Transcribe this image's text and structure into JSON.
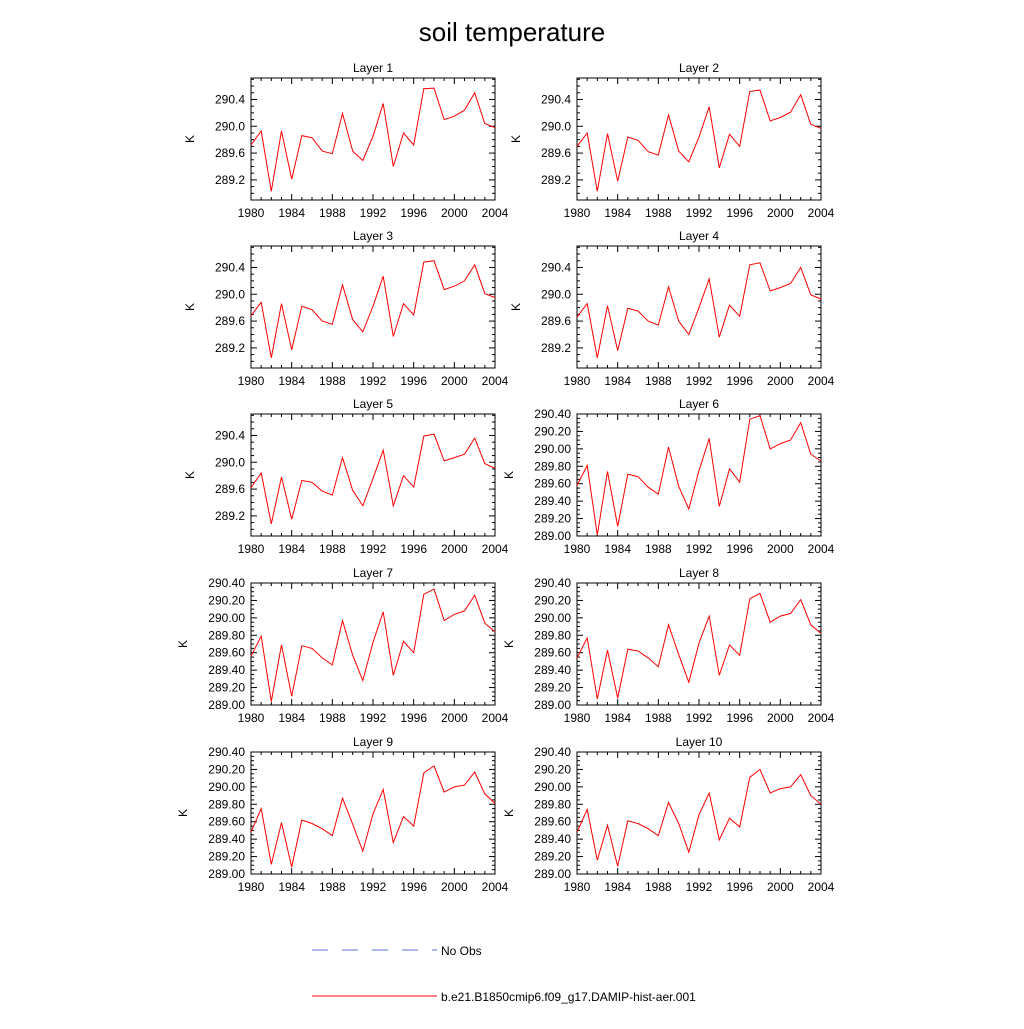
{
  "title": "soil temperature",
  "legend": {
    "items": [
      {
        "label": "No Obs",
        "color": "#5a6fd6",
        "style": "dashed"
      },
      {
        "label": "b.e21.B1850cmip6.f09_g17.DAMIP-hist-aer.001",
        "color": "#ff0000",
        "style": "solid"
      }
    ]
  },
  "chart_data": [
    {
      "type": "line",
      "title": "Layer 1",
      "ylabel": "K",
      "xlim": [
        1980,
        2004
      ],
      "ylim": [
        288.9,
        290.72
      ],
      "x_ticks": [
        "1980",
        "1984",
        "1988",
        "1992",
        "1996",
        "2000",
        "2004"
      ],
      "y_ticks": [
        289.2,
        289.6,
        290.0,
        290.4
      ],
      "y_tick_labels": [
        "289.2",
        "289.6",
        "290.0",
        "290.4"
      ],
      "series": [
        {
          "color": "#ff0000",
          "x": [
            1980,
            1981,
            1982,
            1983,
            1984,
            1985,
            1986,
            1987,
            1988,
            1989,
            1990,
            1991,
            1992,
            1993,
            1994,
            1995,
            1996,
            1997,
            1998,
            1999,
            2000,
            2001,
            2002,
            2003,
            2004
          ],
          "y": [
            289.72,
            289.93,
            289.03,
            289.93,
            289.21,
            289.86,
            289.83,
            289.63,
            289.59,
            290.19,
            289.63,
            289.49,
            289.85,
            290.34,
            289.4,
            289.9,
            289.72,
            290.56,
            290.57,
            290.1,
            290.15,
            290.24,
            290.5,
            290.04,
            289.98
          ]
        }
      ]
    },
    {
      "type": "line",
      "title": "Layer 2",
      "ylabel": "K",
      "xlim": [
        1980,
        2004
      ],
      "ylim": [
        288.9,
        290.72
      ],
      "x_ticks": [
        "1980",
        "1984",
        "1988",
        "1992",
        "1996",
        "2000",
        "2004"
      ],
      "y_ticks": [
        289.2,
        289.6,
        290.0,
        290.4
      ],
      "y_tick_labels": [
        "289.2",
        "289.6",
        "290.0",
        "290.4"
      ],
      "series": [
        {
          "color": "#ff0000",
          "x": [
            1980,
            1981,
            1982,
            1983,
            1984,
            1985,
            1986,
            1987,
            1988,
            1989,
            1990,
            1991,
            1992,
            1993,
            1994,
            1995,
            1996,
            1997,
            1998,
            1999,
            2000,
            2001,
            2002,
            2003,
            2004
          ],
          "y": [
            289.7,
            289.9,
            289.03,
            289.89,
            289.18,
            289.84,
            289.79,
            289.62,
            289.57,
            290.17,
            289.63,
            289.47,
            289.84,
            290.29,
            289.38,
            289.88,
            289.7,
            290.52,
            290.54,
            290.08,
            290.13,
            290.21,
            290.47,
            290.03,
            289.97
          ]
        }
      ]
    },
    {
      "type": "line",
      "title": "Layer 3",
      "ylabel": "K",
      "xlim": [
        1980,
        2004
      ],
      "ylim": [
        288.9,
        290.72
      ],
      "x_ticks": [
        "1980",
        "1984",
        "1988",
        "1992",
        "1996",
        "2000",
        "2004"
      ],
      "y_ticks": [
        289.2,
        289.6,
        290.0,
        290.4
      ],
      "y_tick_labels": [
        "289.2",
        "289.6",
        "290.0",
        "290.4"
      ],
      "series": [
        {
          "color": "#ff0000",
          "x": [
            1980,
            1981,
            1982,
            1983,
            1984,
            1985,
            1986,
            1987,
            1988,
            1989,
            1990,
            1991,
            1992,
            1993,
            1994,
            1995,
            1996,
            1997,
            1998,
            1999,
            2000,
            2001,
            2002,
            2003,
            2004
          ],
          "y": [
            289.68,
            289.88,
            289.05,
            289.86,
            289.17,
            289.82,
            289.77,
            289.6,
            289.55,
            290.14,
            289.62,
            289.44,
            289.82,
            290.27,
            289.37,
            289.86,
            289.69,
            290.48,
            290.5,
            290.07,
            290.12,
            290.2,
            290.44,
            290.01,
            289.95
          ]
        }
      ]
    },
    {
      "type": "line",
      "title": "Layer 4",
      "ylabel": "K",
      "xlim": [
        1980,
        2004
      ],
      "ylim": [
        288.9,
        290.72
      ],
      "x_ticks": [
        "1980",
        "1984",
        "1988",
        "1992",
        "1996",
        "2000",
        "2004"
      ],
      "y_ticks": [
        289.2,
        289.6,
        290.0,
        290.4
      ],
      "y_tick_labels": [
        "289.2",
        "289.6",
        "290.0",
        "290.4"
      ],
      "series": [
        {
          "color": "#ff0000",
          "x": [
            1980,
            1981,
            1982,
            1983,
            1984,
            1985,
            1986,
            1987,
            1988,
            1989,
            1990,
            1991,
            1992,
            1993,
            1994,
            1995,
            1996,
            1997,
            1998,
            1999,
            2000,
            2001,
            2002,
            2003,
            2004
          ],
          "y": [
            289.66,
            289.86,
            289.05,
            289.83,
            289.16,
            289.79,
            289.75,
            289.6,
            289.54,
            290.11,
            289.6,
            289.4,
            289.8,
            290.23,
            289.36,
            289.84,
            289.67,
            290.44,
            290.47,
            290.05,
            290.1,
            290.16,
            290.4,
            289.99,
            289.93
          ]
        }
      ]
    },
    {
      "type": "line",
      "title": "Layer 5",
      "ylabel": "K",
      "xlim": [
        1980,
        2004
      ],
      "ylim": [
        288.9,
        290.72
      ],
      "x_ticks": [
        "1980",
        "1984",
        "1988",
        "1992",
        "1996",
        "2000",
        "2004"
      ],
      "y_ticks": [
        289.2,
        289.6,
        290.0,
        290.4
      ],
      "y_tick_labels": [
        "289.2",
        "289.6",
        "290.0",
        "290.4"
      ],
      "series": [
        {
          "color": "#ff0000",
          "x": [
            1980,
            1981,
            1982,
            1983,
            1984,
            1985,
            1986,
            1987,
            1988,
            1989,
            1990,
            1991,
            1992,
            1993,
            1994,
            1995,
            1996,
            1997,
            1998,
            1999,
            2000,
            2001,
            2002,
            2003,
            2004
          ],
          "y": [
            289.62,
            289.84,
            289.08,
            289.78,
            289.15,
            289.73,
            289.7,
            289.57,
            289.51,
            290.07,
            289.58,
            289.35,
            289.76,
            290.18,
            289.35,
            289.8,
            289.63,
            290.39,
            290.42,
            290.02,
            290.07,
            290.12,
            290.36,
            289.98,
            289.91
          ]
        }
      ]
    },
    {
      "type": "line",
      "title": "Layer 6",
      "ylabel": "K",
      "xlim": [
        1980,
        2004
      ],
      "ylim": [
        289.0,
        290.4
      ],
      "x_ticks": [
        "1980",
        "1984",
        "1988",
        "1992",
        "1996",
        "2000",
        "2004"
      ],
      "y_ticks": [
        289.0,
        289.2,
        289.4,
        289.6,
        289.8,
        290.0,
        290.2,
        290.4
      ],
      "y_tick_labels": [
        "289.00",
        "289.20",
        "289.40",
        "289.60",
        "289.80",
        "290.00",
        "290.20",
        "290.40"
      ],
      "series": [
        {
          "color": "#ff0000",
          "x": [
            1980,
            1981,
            1982,
            1983,
            1984,
            1985,
            1986,
            1987,
            1988,
            1989,
            1990,
            1991,
            1992,
            1993,
            1994,
            1995,
            1996,
            1997,
            1998,
            1999,
            2000,
            2001,
            2002,
            2003,
            2004
          ],
          "y": [
            289.58,
            289.81,
            289.01,
            289.74,
            289.11,
            289.71,
            289.68,
            289.56,
            289.48,
            290.02,
            289.57,
            289.31,
            289.75,
            290.12,
            289.34,
            289.77,
            289.62,
            290.34,
            290.38,
            290.0,
            290.06,
            290.1,
            290.3,
            289.94,
            289.86
          ]
        }
      ]
    },
    {
      "type": "line",
      "title": "Layer 7",
      "ylabel": "K",
      "xlim": [
        1980,
        2004
      ],
      "ylim": [
        289.0,
        290.4
      ],
      "x_ticks": [
        "1980",
        "1984",
        "1988",
        "1992",
        "1996",
        "2000",
        "2004"
      ],
      "y_ticks": [
        289.0,
        289.2,
        289.4,
        289.6,
        289.8,
        290.0,
        290.2,
        290.4
      ],
      "y_tick_labels": [
        "289.00",
        "289.20",
        "289.40",
        "289.60",
        "289.80",
        "290.00",
        "290.20",
        "290.40"
      ],
      "series": [
        {
          "color": "#ff0000",
          "x": [
            1980,
            1981,
            1982,
            1983,
            1984,
            1985,
            1986,
            1987,
            1988,
            1989,
            1990,
            1991,
            1992,
            1993,
            1994,
            1995,
            1996,
            1997,
            1998,
            1999,
            2000,
            2001,
            2002,
            2003,
            2004
          ],
          "y": [
            289.56,
            289.79,
            289.04,
            289.69,
            289.1,
            289.68,
            289.65,
            289.54,
            289.46,
            289.97,
            289.57,
            289.28,
            289.72,
            290.07,
            289.34,
            289.73,
            289.6,
            290.27,
            290.33,
            289.97,
            290.04,
            290.08,
            290.26,
            289.94,
            289.84
          ]
        }
      ]
    },
    {
      "type": "line",
      "title": "Layer 8",
      "ylabel": "K",
      "xlim": [
        1980,
        2004
      ],
      "ylim": [
        289.0,
        290.4
      ],
      "x_ticks": [
        "1980",
        "1984",
        "1988",
        "1992",
        "1996",
        "2000",
        "2004"
      ],
      "y_ticks": [
        289.0,
        289.2,
        289.4,
        289.6,
        289.8,
        290.0,
        290.2,
        290.4
      ],
      "y_tick_labels": [
        "289.00",
        "289.20",
        "289.40",
        "289.60",
        "289.80",
        "290.00",
        "290.20",
        "290.40"
      ],
      "series": [
        {
          "color": "#ff0000",
          "x": [
            1980,
            1981,
            1982,
            1983,
            1984,
            1985,
            1986,
            1987,
            1988,
            1989,
            1990,
            1991,
            1992,
            1993,
            1994,
            1995,
            1996,
            1997,
            1998,
            1999,
            2000,
            2001,
            2002,
            2003,
            2004
          ],
          "y": [
            289.54,
            289.77,
            289.07,
            289.63,
            289.08,
            289.64,
            289.62,
            289.54,
            289.44,
            289.92,
            289.58,
            289.26,
            289.71,
            290.02,
            289.34,
            289.69,
            289.57,
            290.22,
            290.28,
            289.95,
            290.02,
            290.05,
            290.21,
            289.92,
            289.82
          ]
        }
      ]
    },
    {
      "type": "line",
      "title": "Layer 9",
      "ylabel": "K",
      "xlim": [
        1980,
        2004
      ],
      "ylim": [
        289.0,
        290.4
      ],
      "x_ticks": [
        "1980",
        "1984",
        "1988",
        "1992",
        "1996",
        "2000",
        "2004"
      ],
      "y_ticks": [
        289.0,
        289.2,
        289.4,
        289.6,
        289.8,
        290.0,
        290.2,
        290.4
      ],
      "y_tick_labels": [
        "289.00",
        "289.20",
        "289.40",
        "289.60",
        "289.80",
        "290.00",
        "290.20",
        "290.40"
      ],
      "series": [
        {
          "color": "#ff0000",
          "x": [
            1980,
            1981,
            1982,
            1983,
            1984,
            1985,
            1986,
            1987,
            1988,
            1989,
            1990,
            1991,
            1992,
            1993,
            1994,
            1995,
            1996,
            1997,
            1998,
            1999,
            2000,
            2001,
            2002,
            2003,
            2004
          ],
          "y": [
            289.48,
            289.75,
            289.11,
            289.59,
            289.08,
            289.62,
            289.58,
            289.52,
            289.44,
            289.87,
            289.57,
            289.26,
            289.69,
            289.97,
            289.36,
            289.66,
            289.55,
            290.16,
            290.24,
            289.94,
            290.0,
            290.02,
            290.17,
            289.92,
            289.81
          ]
        }
      ]
    },
    {
      "type": "line",
      "title": "Layer 10",
      "ylabel": "K",
      "xlim": [
        1980,
        2004
      ],
      "ylim": [
        289.0,
        290.4
      ],
      "x_ticks": [
        "1980",
        "1984",
        "1988",
        "1992",
        "1996",
        "2000",
        "2004"
      ],
      "y_ticks": [
        289.0,
        289.2,
        289.4,
        289.6,
        289.8,
        290.0,
        290.2,
        290.4
      ],
      "y_tick_labels": [
        "289.00",
        "289.20",
        "289.40",
        "289.60",
        "289.80",
        "290.00",
        "290.20",
        "290.40"
      ],
      "series": [
        {
          "color": "#ff0000",
          "x": [
            1980,
            1981,
            1982,
            1983,
            1984,
            1985,
            1986,
            1987,
            1988,
            1989,
            1990,
            1991,
            1992,
            1993,
            1994,
            1995,
            1996,
            1997,
            1998,
            1999,
            2000,
            2001,
            2002,
            2003,
            2004
          ],
          "y": [
            289.48,
            289.74,
            289.16,
            289.56,
            289.09,
            289.61,
            289.58,
            289.52,
            289.44,
            289.82,
            289.58,
            289.25,
            289.68,
            289.93,
            289.39,
            289.64,
            289.54,
            290.11,
            290.2,
            289.93,
            289.98,
            290.0,
            290.14,
            289.9,
            289.8
          ]
        }
      ]
    }
  ]
}
